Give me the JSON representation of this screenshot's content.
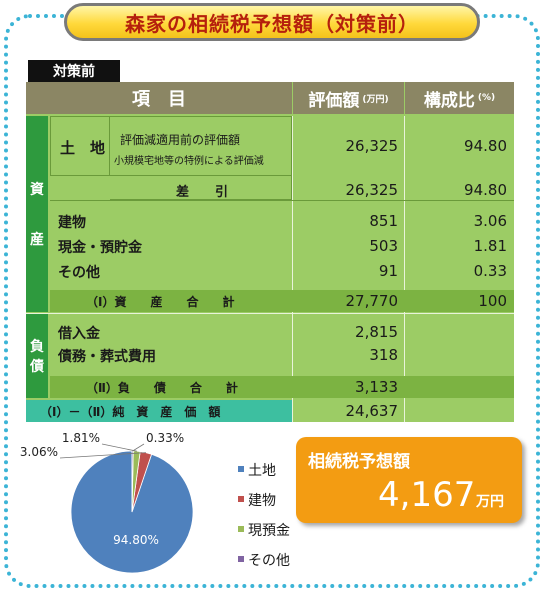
{
  "title": "森家の相続税予想額（対策前）",
  "section_tag": "対策前",
  "header": {
    "item": "項　目",
    "value": "評価額",
    "value_unit": "(万円)",
    "ratio": "構成比",
    "ratio_unit": "(%)"
  },
  "labels": {
    "assets": [
      "資",
      "産"
    ],
    "debts": [
      "負",
      "債"
    ]
  },
  "land": {
    "label": "土　地",
    "desc1": "評価減適用前の評価額",
    "desc2": "小規模宅地等の特例による評価減",
    "value": "26,325",
    "ratio": "94.80",
    "diff_label": "差　　引",
    "diff_value": "26,325",
    "diff_ratio": "94.80"
  },
  "other_assets": [
    {
      "label": "建物",
      "value": "851",
      "ratio": "3.06"
    },
    {
      "label": "現金・預貯金",
      "value": "503",
      "ratio": "1.81"
    },
    {
      "label": "その他",
      "value": "91",
      "ratio": "0.33"
    }
  ],
  "asset_total": {
    "label": "（Ⅰ）資　　産　　合　　計",
    "value": "27,770",
    "ratio": "100"
  },
  "debts": [
    {
      "label": "借入金",
      "value": "2,815"
    },
    {
      "label": "債務・葬式費用",
      "value": "318"
    }
  ],
  "debt_total": {
    "label": "（Ⅱ）負　　債　　合　　計",
    "value": "3,133"
  },
  "net": {
    "label": "（Ⅰ）－（Ⅱ）純　資　産　価　額",
    "value": "24,637"
  },
  "result": {
    "label": "相続税予想額",
    "value": "4,167",
    "unit": "万円"
  },
  "chart_data": {
    "type": "pie",
    "slices": [
      {
        "label": "土地",
        "value": 94.8,
        "display": "94.80%",
        "color": "#4f81bd"
      },
      {
        "label": "建物",
        "value": 3.06,
        "display": "3.06%",
        "color": "#c0504d"
      },
      {
        "label": "現預金",
        "value": 1.81,
        "display": "1.81%",
        "color": "#9bbb59"
      },
      {
        "label": "その他",
        "value": 0.33,
        "display": "0.33%",
        "color": "#8064a2"
      }
    ],
    "legend_placement": "right"
  }
}
